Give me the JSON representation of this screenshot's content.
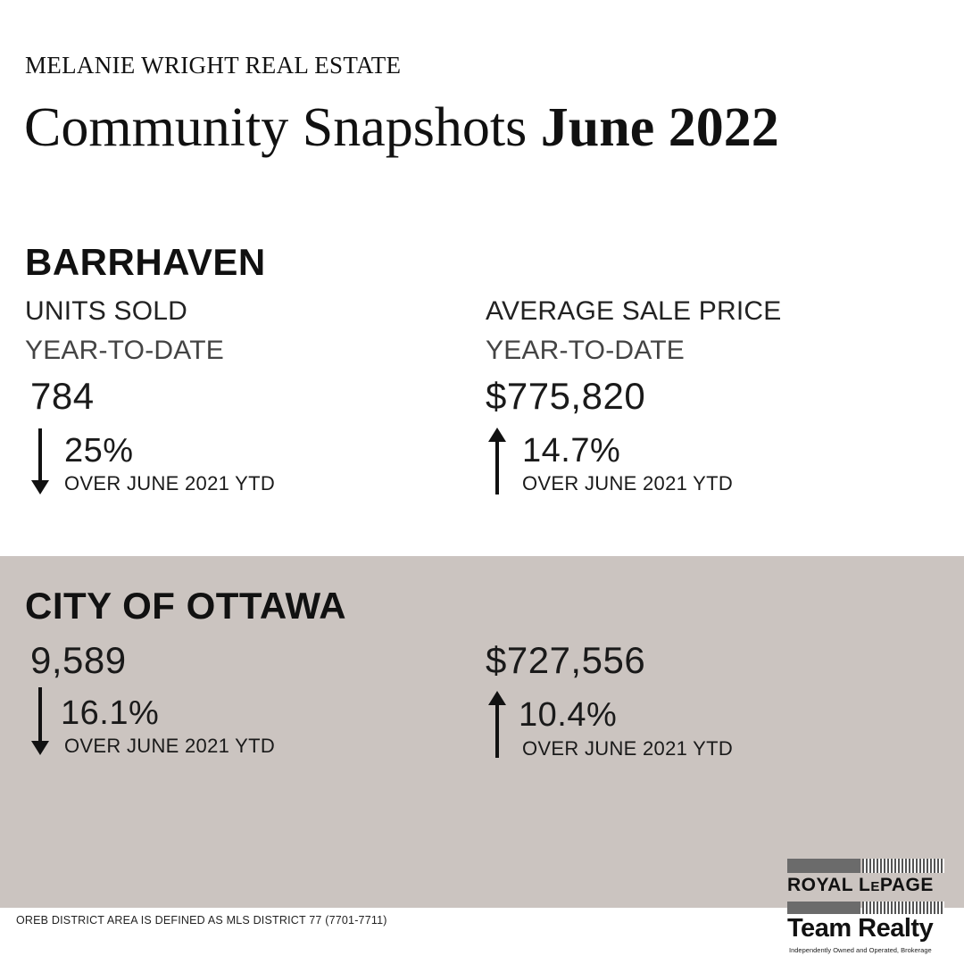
{
  "header": {
    "brand": "MELANIE WRIGHT REAL ESTATE",
    "title_prefix": "Community Snapshots",
    "title_bold": "June 2022"
  },
  "barrhaven": {
    "region": "BARRHAVEN",
    "units": {
      "label": "UNITS SOLD",
      "period": "YEAR-TO-DATE",
      "value": "784",
      "change": "25%",
      "direction": "down",
      "compare": "OVER JUNE 2021 YTD"
    },
    "price": {
      "label": "AVERAGE SALE PRICE",
      "period": "YEAR-TO-DATE",
      "value": "$775,820",
      "change": "14.7%",
      "direction": "up",
      "compare": "OVER JUNE 2021 YTD"
    }
  },
  "ottawa": {
    "region": "CITY OF OTTAWA",
    "units": {
      "value": "9,589",
      "change": "16.1%",
      "direction": "down",
      "compare": "OVER JUNE 2021 YTD"
    },
    "price": {
      "value": "$727,556",
      "change": "10.4%",
      "direction": "up",
      "compare": "OVER JUNE 2021 YTD"
    }
  },
  "footnote": "OREB DISTRICT AREA IS DEFINED AS MLS DISTRICT 77 (7701-7711)",
  "logo": {
    "line1_a": "ROYAL L",
    "line1_b": "E",
    "line1_c": "PAGE",
    "line2": "Team Realty",
    "tagline": "Independently Owned and Operated, Brokerage"
  },
  "colors": {
    "band": "#cbc4c0",
    "text": "#111111"
  }
}
